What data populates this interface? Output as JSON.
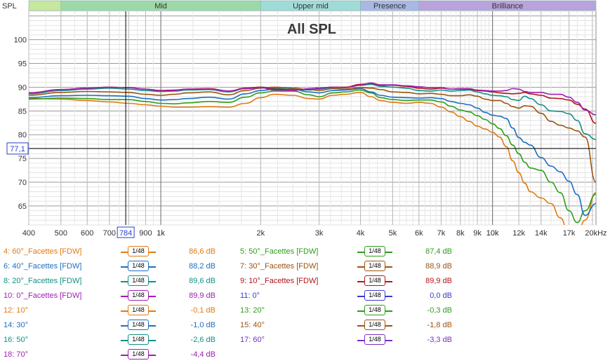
{
  "chart_data": {
    "type": "line",
    "title": "All SPL",
    "ylabel": "SPL",
    "x_unit": "Hz",
    "x_scale": "log",
    "xlim": [
      400,
      20500
    ],
    "ylim": [
      61,
      106
    ],
    "y_ticks": [
      "100",
      "95",
      "90",
      "85",
      "80",
      "75",
      "70",
      "65"
    ],
    "y_tick_values": [
      100,
      95,
      90,
      85,
      80,
      75,
      70,
      65
    ],
    "x_tick_values": [
      400,
      500,
      600,
      700,
      800,
      900,
      1000,
      2000,
      3000,
      4000,
      5000,
      6000,
      7000,
      8000,
      9000,
      10000,
      12000,
      14000,
      17000,
      20000
    ],
    "x_ticks": [
      "400",
      "500",
      "600",
      "700",
      "",
      "900",
      "1k",
      "2k",
      "3k",
      "4k",
      "5k",
      "6k",
      "7k",
      "8k",
      "9k",
      "10k",
      "12k",
      "14k",
      "17k",
      "20kHz"
    ],
    "bands": [
      {
        "label": "",
        "from": 400,
        "to": 500,
        "color": "#c6e89b"
      },
      {
        "label": "Mid",
        "from": 500,
        "to": 2000,
        "color": "#9bdaa6"
      },
      {
        "label": "Upper mid",
        "from": 2000,
        "to": 4000,
        "color": "#9fdcd8"
      },
      {
        "label": "Presence",
        "from": 4000,
        "to": 6000,
        "color": "#a9b7e4"
      },
      {
        "label": "Brilliance",
        "from": 6000,
        "to": 20500,
        "color": "#b9a3dc"
      }
    ],
    "cursor": {
      "x_label": "784",
      "y_label": "77,1",
      "x": 784,
      "y": 77.1
    },
    "series": [
      {
        "name": "4: 60°_Facettes [FDW]",
        "color": "#e07b14",
        "x": [
          400,
          500,
          600,
          700,
          800,
          900,
          1000,
          1100,
          1200,
          1400,
          1600,
          1800,
          2000,
          2200,
          2500,
          2800,
          3000,
          3300,
          3600,
          4000,
          4300,
          4600,
          5000,
          5500,
          6000,
          6500,
          7000,
          7500,
          8000,
          8500,
          9000,
          9500,
          10000,
          10500,
          11000,
          11500,
          12000,
          12500,
          13000,
          14000,
          15000,
          16000,
          17000,
          18000,
          19000,
          20500
        ],
        "y": [
          87.6,
          87.5,
          87.2,
          86.9,
          86.6,
          86.3,
          86.0,
          85.8,
          85.8,
          85.9,
          85.8,
          86.6,
          87.8,
          88.5,
          88.3,
          87.6,
          87.5,
          88.3,
          88.5,
          88.9,
          88.0,
          87.2,
          86.8,
          86.6,
          86.8,
          86.6,
          85.8,
          84.8,
          83.8,
          82.8,
          81.8,
          81.2,
          80.5,
          79.5,
          77.5,
          74.5,
          72.0,
          69.8,
          68.0,
          66.7,
          65.5,
          62.5,
          59.0,
          59.0,
          62.0,
          67.8
        ]
      },
      {
        "name": "5: 50°_Facettes [FDW]",
        "color": "#2e9e1b",
        "x": [
          400,
          500,
          600,
          700,
          800,
          900,
          1000,
          1100,
          1200,
          1400,
          1600,
          1800,
          2000,
          2200,
          2500,
          2800,
          3000,
          3300,
          3600,
          4000,
          4300,
          4600,
          5000,
          5500,
          6000,
          6500,
          7000,
          7500,
          8000,
          8500,
          9000,
          9500,
          10000,
          10500,
          11000,
          11500,
          12000,
          12500,
          13000,
          14000,
          15000,
          16000,
          17000,
          18000,
          19000,
          20500
        ],
        "y": [
          87.5,
          87.7,
          87.6,
          87.4,
          87.4,
          87.0,
          86.6,
          86.5,
          86.7,
          87.0,
          86.8,
          87.9,
          88.8,
          89.2,
          89.2,
          88.4,
          88.0,
          88.8,
          89.0,
          89.4,
          88.8,
          87.8,
          87.4,
          87.2,
          87.3,
          87.3,
          86.9,
          86.0,
          85.2,
          84.8,
          84.0,
          83.2,
          82.3,
          81.3,
          79.8,
          77.8,
          76.0,
          74.2,
          73.0,
          72.5,
          70.0,
          67.8,
          64.0,
          61.5,
          64.0,
          67.5
        ]
      },
      {
        "name": "6: 40°_Facettes [FDW]",
        "color": "#1b6fc4",
        "x": [
          400,
          500,
          600,
          700,
          800,
          900,
          1000,
          1100,
          1200,
          1400,
          1600,
          1800,
          2000,
          2200,
          2500,
          2800,
          3000,
          3300,
          3600,
          4000,
          4300,
          4600,
          5000,
          5500,
          6000,
          6500,
          7000,
          7500,
          8000,
          8500,
          9000,
          9500,
          10000,
          10500,
          11000,
          11500,
          12000,
          12500,
          13000,
          14000,
          15000,
          16000,
          17000,
          18000,
          19000,
          20500
        ],
        "y": [
          87.8,
          88.2,
          88.3,
          88.2,
          88.1,
          87.6,
          87.3,
          87.4,
          87.6,
          87.9,
          87.5,
          88.6,
          89.3,
          89.6,
          89.6,
          89.0,
          88.8,
          89.3,
          89.4,
          89.7,
          89.0,
          88.3,
          87.9,
          87.8,
          87.7,
          87.8,
          87.6,
          87.0,
          86.6,
          86.3,
          85.6,
          84.7,
          84.1,
          83.9,
          83.4,
          81.4,
          79.4,
          78.4,
          77.8,
          75.2,
          73.4,
          72.2,
          70.2,
          67.4,
          63.0,
          65.5
        ]
      },
      {
        "name": "7: 30°_Facettes [FDW]",
        "color": "#9c5412",
        "x": [
          400,
          500,
          600,
          700,
          800,
          900,
          1000,
          1100,
          1200,
          1400,
          1600,
          1800,
          2000,
          2200,
          2500,
          2800,
          3000,
          3300,
          3600,
          4000,
          4300,
          4600,
          5000,
          5500,
          6000,
          6500,
          7000,
          7500,
          8000,
          8500,
          9000,
          9500,
          10000,
          10500,
          11000,
          11500,
          12000,
          12500,
          13000,
          14000,
          15000,
          16000,
          17000,
          18000,
          19000,
          20500
        ],
        "y": [
          88.3,
          88.9,
          89.1,
          89.0,
          88.9,
          88.5,
          88.3,
          88.5,
          88.8,
          89.0,
          88.4,
          89.3,
          89.8,
          90.0,
          89.8,
          89.5,
          89.3,
          89.7,
          89.6,
          89.9,
          89.8,
          89.5,
          89.0,
          88.9,
          88.6,
          88.7,
          88.5,
          88.2,
          88.2,
          88.4,
          88.1,
          87.5,
          87.2,
          87.2,
          86.6,
          85.9,
          85.6,
          86.1,
          86.0,
          84.5,
          82.8,
          82.0,
          81.4,
          80.8,
          79.5,
          70.0
        ]
      },
      {
        "name": "8: 20°_Facettes [FDW]",
        "color": "#138f86",
        "x": [
          400,
          500,
          600,
          700,
          800,
          900,
          1000,
          1100,
          1200,
          1400,
          1600,
          1800,
          2000,
          2200,
          2500,
          2800,
          3000,
          3300,
          3600,
          4000,
          4300,
          4600,
          5000,
          5500,
          6000,
          6500,
          7000,
          7500,
          8000,
          8500,
          9000,
          9500,
          10000,
          10500,
          11000,
          11500,
          12000,
          12500,
          13000,
          14000,
          15000,
          16000,
          17000,
          18000,
          19000,
          20500
        ],
        "y": [
          88.6,
          89.3,
          89.6,
          89.8,
          89.6,
          89.3,
          89.1,
          89.2,
          89.4,
          89.5,
          89.0,
          89.7,
          90.0,
          89.8,
          89.5,
          89.4,
          89.6,
          89.9,
          89.9,
          90.4,
          90.6,
          90.2,
          90.0,
          89.8,
          89.3,
          89.2,
          89.4,
          89.2,
          89.3,
          89.4,
          89.0,
          88.6,
          88.3,
          88.2,
          88.0,
          87.4,
          87.2,
          88.1,
          87.6,
          86.3,
          85.0,
          84.9,
          84.4,
          83.0,
          80.2,
          79.0
        ]
      },
      {
        "name": "9: 10°_Facettes [FDW]",
        "color": "#b01818",
        "x": [
          400,
          500,
          600,
          700,
          800,
          900,
          1000,
          1100,
          1200,
          1400,
          1600,
          1800,
          2000,
          2200,
          2500,
          2800,
          3000,
          3300,
          3600,
          4000,
          4300,
          4600,
          5000,
          5500,
          6000,
          6500,
          7000,
          7500,
          8000,
          8500,
          9000,
          9500,
          10000,
          10500,
          11000,
          11500,
          12000,
          12500,
          13000,
          14000,
          15000,
          16000,
          17000,
          18000,
          19000,
          20500
        ],
        "y": [
          88.8,
          89.5,
          89.8,
          90.0,
          89.9,
          89.6,
          89.3,
          89.4,
          89.6,
          89.7,
          89.2,
          89.8,
          90.0,
          89.6,
          89.4,
          89.6,
          89.8,
          90.0,
          90.0,
          90.6,
          90.8,
          90.4,
          90.4,
          90.2,
          89.8,
          89.6,
          89.8,
          89.6,
          89.6,
          89.6,
          89.3,
          89.2,
          89.0,
          88.8,
          88.7,
          88.6,
          88.7,
          88.9,
          88.6,
          88.3,
          87.7,
          87.6,
          87.3,
          86.4,
          85.4,
          82.4
        ]
      },
      {
        "name": "10: 0°_Facettes [FDW]",
        "color": "#9e1fb3",
        "x": [
          400,
          500,
          600,
          700,
          800,
          900,
          1000,
          1100,
          1200,
          1400,
          1600,
          1800,
          2000,
          2200,
          2500,
          2800,
          3000,
          3300,
          3600,
          4000,
          4300,
          4600,
          5000,
          5500,
          6000,
          6500,
          7000,
          7500,
          8000,
          8500,
          9000,
          9500,
          10000,
          10500,
          11000,
          11500,
          12000,
          12500,
          13000,
          14000,
          15000,
          16000,
          17000,
          18000,
          19000,
          20500
        ],
        "y": [
          88.8,
          89.5,
          89.8,
          90.0,
          89.9,
          89.6,
          89.2,
          89.3,
          89.6,
          89.6,
          89.2,
          89.7,
          89.9,
          89.4,
          89.3,
          89.7,
          89.8,
          90.0,
          89.9,
          90.4,
          90.9,
          90.5,
          90.5,
          90.3,
          90.1,
          89.9,
          89.9,
          89.6,
          89.7,
          89.7,
          89.4,
          89.3,
          89.2,
          89.2,
          89.3,
          89.7,
          89.6,
          89.1,
          88.9,
          88.9,
          88.5,
          88.5,
          87.9,
          86.8,
          85.2,
          84.2
        ]
      }
    ]
  },
  "legend": {
    "smooth_label": "1/48",
    "items": [
      {
        "name": "4: 60°_Facettes [FDW]",
        "value": "86,6 dB",
        "color": "#e07b14"
      },
      {
        "name": "5: 50°_Facettes [FDW]",
        "value": "87,4 dB",
        "color": "#2e9e1b"
      },
      {
        "name": "6: 40°_Facettes [FDW]",
        "value": "88,2 dB",
        "color": "#1b6fc4"
      },
      {
        "name": "7: 30°_Facettes [FDW]",
        "value": "88,9 dB",
        "color": "#9c5412"
      },
      {
        "name": "8: 20°_Facettes [FDW]",
        "value": "89,6 dB",
        "color": "#138f86"
      },
      {
        "name": "9: 10°_Facettes [FDW]",
        "value": "89,9 dB",
        "color": "#b01818"
      },
      {
        "name": "10: 0°_Facettes [FDW]",
        "value": "89,9 dB",
        "color": "#9e1fb3"
      },
      {
        "name": "11: 0°",
        "value": "0,0 dB",
        "color": "#3a3ad0"
      },
      {
        "name": "12: 10°",
        "value": "-0,1 dB",
        "color": "#e07b14"
      },
      {
        "name": "13: 20°",
        "value": "-0,3 dB",
        "color": "#2e9e1b"
      },
      {
        "name": "14: 30°",
        "value": "-1,0 dB",
        "color": "#1b6fc4"
      },
      {
        "name": "15: 40°",
        "value": "-1,8 dB",
        "color": "#9c5412"
      },
      {
        "name": "16: 50°",
        "value": "-2,6 dB",
        "color": "#138f86"
      },
      {
        "name": "17: 60°",
        "value": "-3,3 dB",
        "color": "#7a2fc4"
      },
      {
        "name": "18: 70°",
        "value": "-4,4 dB",
        "color": "#9e1fb3"
      }
    ]
  }
}
